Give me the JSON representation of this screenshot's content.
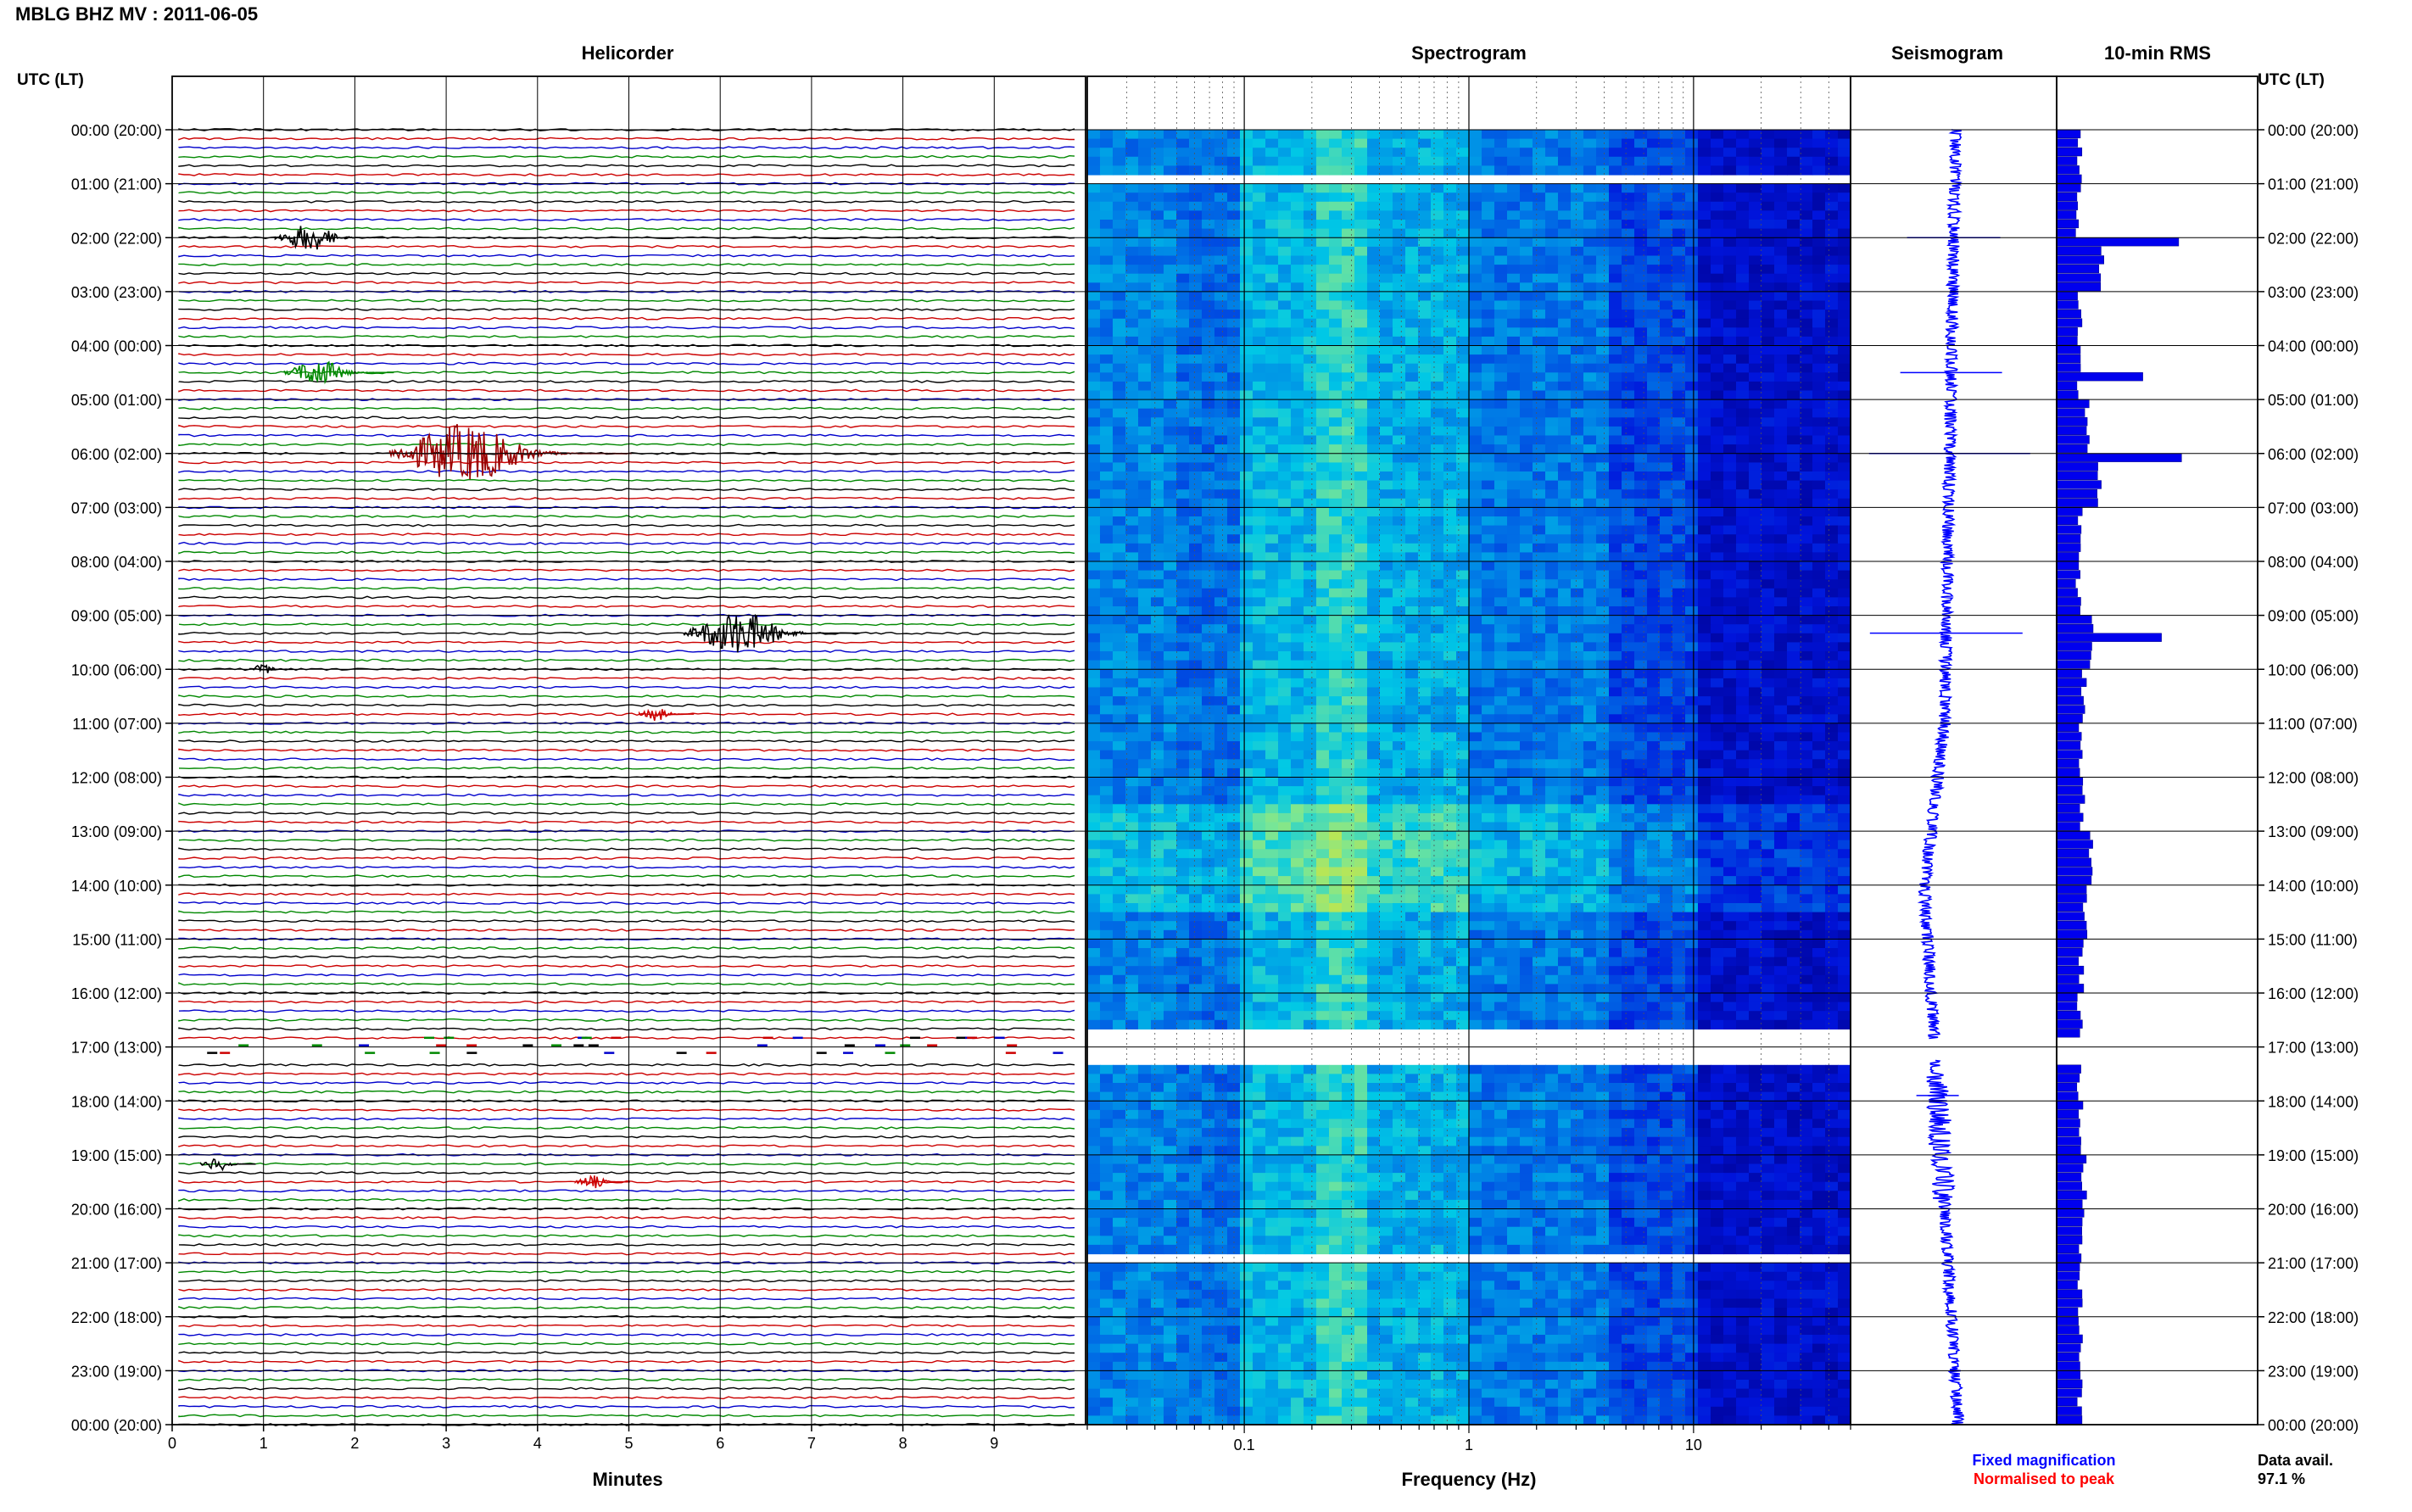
{
  "title": "MBLG BHZ MV : 2011-06-05",
  "panel_titles": {
    "helicorder": "Helicorder",
    "spectrogram": "Spectrogram",
    "seismogram": "Seismogram",
    "rms": "10-min RMS"
  },
  "axis_labels": {
    "left_time": "UTC (LT)",
    "right_time": "UTC (LT)",
    "minutes": "Minutes",
    "frequency": "Frequency (Hz)"
  },
  "legend": {
    "fixed": "Fixed magnification",
    "normalised": "Normalised to peak",
    "fixed_color": "#0000ff",
    "normalised_color": "#ff0000"
  },
  "data_avail_label": "Data avail.",
  "data_avail_value": "97.1 %",
  "chart_data": {
    "type": "heatmap",
    "time_labels": [
      "00:00 (20:00)",
      "01:00 (21:00)",
      "02:00 (22:00)",
      "03:00 (23:00)",
      "04:00 (00:00)",
      "05:00 (01:00)",
      "06:00 (02:00)",
      "07:00 (03:00)",
      "08:00 (04:00)",
      "09:00 (05:00)",
      "10:00 (06:00)",
      "11:00 (07:00)",
      "12:00 (08:00)",
      "13:00 (09:00)",
      "14:00 (10:00)",
      "15:00 (11:00)",
      "16:00 (12:00)",
      "17:00 (13:00)",
      "18:00 (14:00)",
      "19:00 (15:00)",
      "20:00 (16:00)",
      "21:00 (17:00)",
      "22:00 (18:00)",
      "23:00 (19:00)",
      "00:00 (20:00)"
    ],
    "minute_ticks": [
      "0",
      "1",
      "2",
      "3",
      "4",
      "5",
      "6",
      "7",
      "8",
      "9"
    ],
    "minute_range": [
      0,
      10
    ],
    "helicorder_colors": [
      "#000000",
      "#cc0000",
      "#0000cc",
      "#008800"
    ],
    "helicorder_traces_per_hour": 6,
    "frequency_range": [
      0.02,
      50
    ],
    "frequency_scale": "log",
    "frequency_ticks": [
      "0.1",
      "1",
      "10"
    ],
    "spectrogram_gaps_hours": [
      [
        0.9,
        0.98
      ],
      [
        16.7,
        17.4
      ],
      [
        20.8,
        20.95
      ]
    ],
    "helicorder_events": [
      {
        "hour": 2.0,
        "minute": 1.5,
        "amp": 1.0,
        "color": "#000000"
      },
      {
        "hour": 4.5,
        "minute": 1.6,
        "amp": 1.0,
        "color": "#008800"
      },
      {
        "hour": 6.0,
        "minute": 3.2,
        "amp": 2.2,
        "color": "#990000"
      },
      {
        "hour": 9.33,
        "minute": 6.2,
        "amp": 1.6,
        "color": "#000000"
      },
      {
        "hour": 10.0,
        "minute": 1.0,
        "amp": 0.4,
        "color": "#000000"
      },
      {
        "hour": 10.83,
        "minute": 5.3,
        "amp": 0.5,
        "color": "#cc0000"
      },
      {
        "hour": 19.17,
        "minute": 0.5,
        "amp": 0.5,
        "color": "#000000"
      },
      {
        "hour": 19.5,
        "minute": 4.6,
        "amp": 0.5,
        "color": "#cc0000"
      }
    ],
    "rms_hourly": [
      1.6,
      1.5,
      3.1,
      1.6,
      1.5,
      2.1,
      3.0,
      1.6,
      1.5,
      2.4,
      1.9,
      1.7,
      1.8,
      2.4,
      2.0,
      1.7,
      1.6,
      1.5,
      1.7,
      1.9,
      1.7,
      1.6,
      1.7,
      1.6
    ],
    "rms_peaks": [
      {
        "hour": 2.0,
        "value": 8.5
      },
      {
        "hour": 4.5,
        "value": 6.0
      },
      {
        "hour": 6.0,
        "value": 8.7
      },
      {
        "hour": 9.33,
        "value": 7.3
      }
    ],
    "rms_max": 14
  }
}
